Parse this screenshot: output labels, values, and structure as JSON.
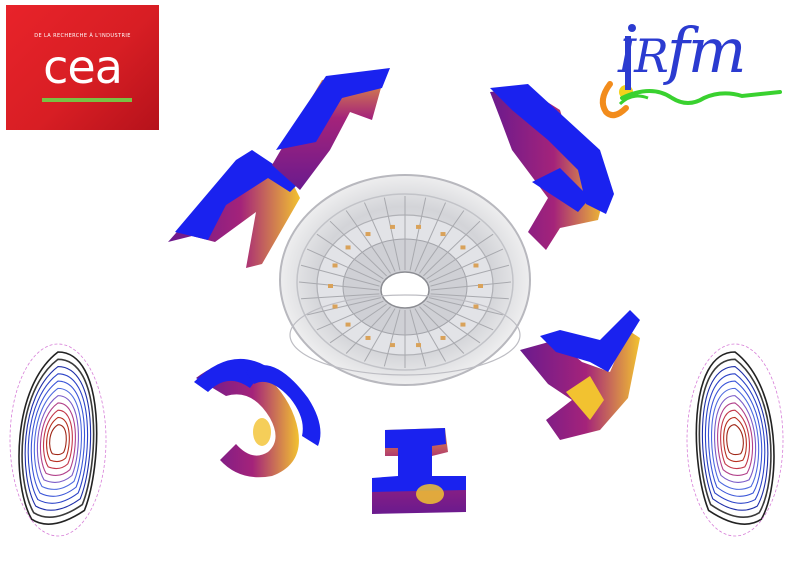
{
  "logos": {
    "cea": {
      "tagline": "DE LA RECHERCHE À L'INDUSTRIE",
      "wordmark": "cea",
      "background": "#e2202a",
      "accent": "#7ac143"
    },
    "irfm": {
      "wordmark": "IRfm",
      "color": "#2b3bd0",
      "swoosh_color": "#39d12f",
      "dot_color": "#f28c1c"
    }
  },
  "artwork": {
    "letters": [
      "M",
      "E",
      "T",
      "I",
      "S"
    ],
    "letter_front_color": "#1a22ef",
    "letter_side_color": "#8a1a8a",
    "letter_highlight_color": "#f2c230",
    "center_icon": "tokamak-vessel-icon",
    "side_icons": [
      "plasma-flux-surfaces-icon",
      "plasma-flux-surfaces-icon"
    ]
  }
}
